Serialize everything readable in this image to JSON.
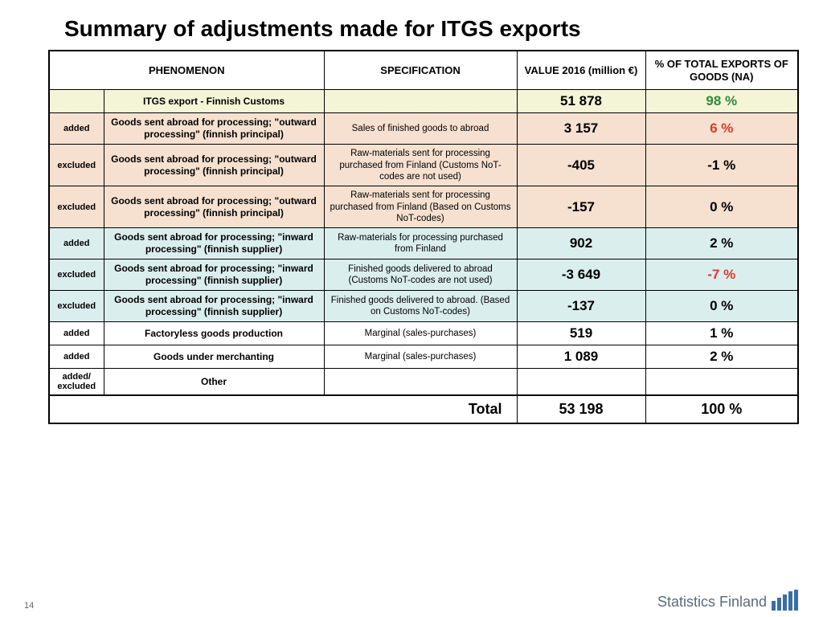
{
  "title": "Summary of adjustments made for ITGS exports",
  "headers": {
    "phenomenon": "PHENOMENON",
    "specification": "SPECIFICATION",
    "value": "VALUE 2016 (million €)",
    "pct": "% OF TOTAL EXPORTS OF GOODS (NA)"
  },
  "rows": [
    {
      "bg": "bg-yellow",
      "tag": "",
      "desc": "ITGS export - Finnish Customs",
      "spec": "",
      "val": "51 878",
      "pct": "98 %",
      "valColor": "",
      "pctColor": "c-green"
    },
    {
      "bg": "bg-peach",
      "tag": "added",
      "desc": "Goods sent abroad for processing; \"outward processing\" (finnish principal)",
      "spec": "Sales of finished goods to abroad",
      "val": "3 157",
      "pct": "6 %",
      "valColor": "",
      "pctColor": "c-red"
    },
    {
      "bg": "bg-peach",
      "tag": "excluded",
      "desc": "Goods sent abroad for processing; \"outward processing\" (finnish principal)",
      "spec": "Raw-materials sent for processing purchased from Finland (Customs NoT-codes are not used)",
      "val": "-405",
      "pct": "-1 %",
      "valColor": "",
      "pctColor": ""
    },
    {
      "bg": "bg-peach",
      "tag": "excluded",
      "desc": "Goods sent abroad for processing; \"outward processing\" (finnish principal)",
      "spec": "Raw-materials sent for processing purchased from Finland (Based on Customs NoT-codes)",
      "val": "-157",
      "pct": "0 %",
      "valColor": "",
      "pctColor": ""
    },
    {
      "bg": "bg-teal",
      "tag": "added",
      "desc": "Goods sent abroad for processing; \"inward processing\" (finnish supplier)",
      "spec": "Raw-materials for processing purchased from Finland",
      "val": "902",
      "pct": "2 %",
      "valColor": "",
      "pctColor": ""
    },
    {
      "bg": "bg-teal",
      "tag": "excluded",
      "desc": "Goods sent abroad for processing; \"inward processing\" (finnish supplier)",
      "spec": "Finished goods delivered to abroad (Customs NoT-codes are not used)",
      "val": "-3 649",
      "pct": "-7 %",
      "valColor": "",
      "pctColor": "c-red"
    },
    {
      "bg": "bg-teal",
      "tag": "excluded",
      "desc": "Goods sent abroad for processing; \"inward processing\" (finnish supplier)",
      "spec": "Finished goods delivered to abroad. (Based on Customs NoT-codes)",
      "val": "-137",
      "pct": "0 %",
      "valColor": "",
      "pctColor": ""
    },
    {
      "bg": "bg-white",
      "tag": "added",
      "desc": "Factoryless goods production",
      "spec": "Marginal (sales-purchases)",
      "val": "519",
      "pct": "1 %",
      "valColor": "",
      "pctColor": ""
    },
    {
      "bg": "bg-white",
      "tag": "added",
      "desc": "Goods under merchanting",
      "spec": "Marginal (sales-purchases)",
      "val": "1 089",
      "pct": "2 %",
      "valColor": "",
      "pctColor": ""
    },
    {
      "bg": "bg-white",
      "tag": "added/ excluded",
      "desc": "Other",
      "spec": "",
      "val": "",
      "pct": "",
      "valColor": "",
      "pctColor": ""
    }
  ],
  "total": {
    "label": "Total",
    "val": "53 198",
    "pct": "100 %"
  },
  "pageNumber": "14",
  "logo": "Statistics Finland"
}
